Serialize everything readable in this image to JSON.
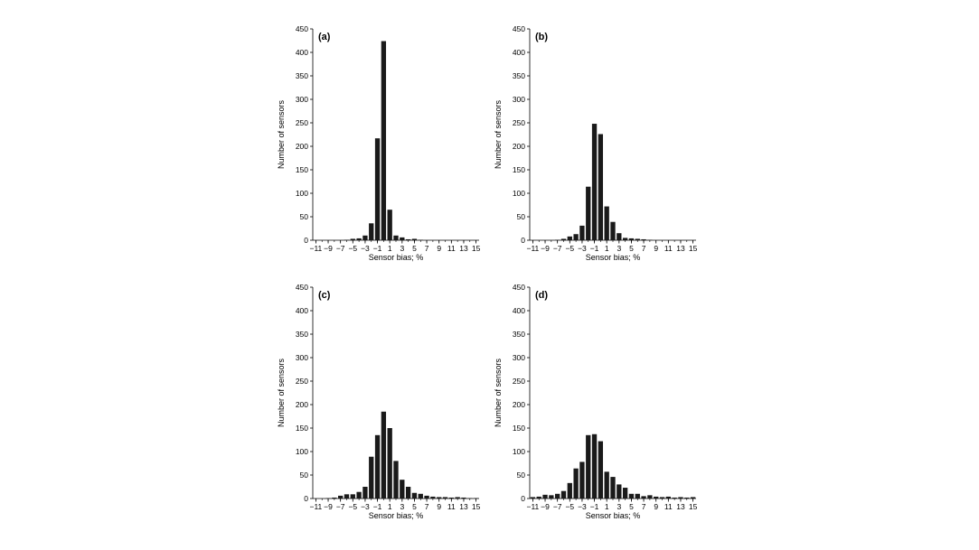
{
  "chart_data": [
    {
      "type": "bar",
      "panel_label": "(a)",
      "xlabel": "Sensor bias; %",
      "ylabel": "Number of sensors",
      "ylim": [
        0,
        450
      ],
      "yticks": [
        0,
        50,
        100,
        150,
        200,
        250,
        300,
        350,
        400,
        450
      ],
      "xlim": [
        -11,
        15
      ],
      "xticks": [
        -11,
        -9,
        -7,
        -5,
        -3,
        -1,
        1,
        3,
        5,
        7,
        9,
        11,
        13,
        15
      ],
      "xtick_labels": [
        "−11",
        "−9",
        "−7",
        "−5",
        "−3",
        "−1",
        "1",
        "3",
        "5",
        "7",
        "9",
        "11",
        "13",
        "15"
      ],
      "x": [
        -11,
        -10,
        -9,
        -8,
        -7,
        -6,
        -5,
        -4,
        -3,
        -2,
        -1,
        0,
        1,
        2,
        3,
        4,
        5,
        6,
        7,
        8,
        9,
        10,
        11,
        12,
        13,
        14,
        15
      ],
      "values": [
        0,
        0,
        0,
        0,
        0,
        1,
        3,
        4,
        10,
        36,
        217,
        424,
        65,
        10,
        6,
        2,
        3,
        1,
        0,
        0,
        0,
        0,
        0,
        0,
        0,
        0,
        0
      ]
    },
    {
      "type": "bar",
      "panel_label": "(b)",
      "xlabel": "Sensor bias; %",
      "ylabel": "Number of sensors",
      "ylim": [
        0,
        450
      ],
      "yticks": [
        0,
        50,
        100,
        150,
        200,
        250,
        300,
        350,
        400,
        450
      ],
      "xlim": [
        -11,
        15
      ],
      "xticks": [
        -11,
        -9,
        -7,
        -5,
        -3,
        -1,
        1,
        3,
        5,
        7,
        9,
        11,
        13,
        15
      ],
      "xtick_labels": [
        "−11",
        "−9",
        "−7",
        "−5",
        "−3",
        "−1",
        "1",
        "3",
        "5",
        "7",
        "9",
        "11",
        "13",
        "15"
      ],
      "x": [
        -11,
        -10,
        -9,
        -8,
        -7,
        -6,
        -5,
        -4,
        -3,
        -2,
        -1,
        0,
        1,
        2,
        3,
        4,
        5,
        6,
        7,
        8,
        9,
        10,
        11,
        12,
        13,
        14,
        15
      ],
      "values": [
        0,
        0,
        0,
        0,
        1,
        3,
        8,
        13,
        31,
        114,
        248,
        226,
        72,
        39,
        15,
        5,
        4,
        3,
        2,
        1,
        0,
        0,
        0,
        0,
        0,
        0,
        0
      ]
    },
    {
      "type": "bar",
      "panel_label": "(c)",
      "xlabel": "Sensor bias; %",
      "ylabel": "Number of sensors",
      "ylim": [
        0,
        450
      ],
      "yticks": [
        0,
        50,
        100,
        150,
        200,
        250,
        300,
        350,
        400,
        450
      ],
      "xlim": [
        -11,
        15
      ],
      "xticks": [
        -11,
        -9,
        -7,
        -5,
        -3,
        -1,
        1,
        3,
        5,
        7,
        9,
        11,
        13,
        15
      ],
      "xtick_labels": [
        "−11",
        "−9",
        "−7",
        "−5",
        "−3",
        "−1",
        "1",
        "3",
        "5",
        "7",
        "9",
        "11",
        "13",
        "15"
      ],
      "x": [
        -11,
        -10,
        -9,
        -8,
        -7,
        -6,
        -5,
        -4,
        -3,
        -2,
        -1,
        0,
        1,
        2,
        3,
        4,
        5,
        6,
        7,
        8,
        9,
        10,
        11,
        12,
        13,
        14,
        15
      ],
      "values": [
        0,
        0,
        1,
        2,
        6,
        9,
        9,
        14,
        25,
        89,
        135,
        185,
        150,
        80,
        40,
        25,
        12,
        10,
        6,
        4,
        3,
        3,
        2,
        3,
        2,
        1,
        1
      ]
    },
    {
      "type": "bar",
      "panel_label": "(d)",
      "xlabel": "Sensor bias; %",
      "ylabel": "Number of sensors",
      "ylim": [
        0,
        450
      ],
      "yticks": [
        0,
        50,
        100,
        150,
        200,
        250,
        300,
        350,
        400,
        450
      ],
      "xlim": [
        -11,
        15
      ],
      "xticks": [
        -11,
        -9,
        -7,
        -5,
        -3,
        -1,
        1,
        3,
        5,
        7,
        9,
        11,
        13,
        15
      ],
      "xtick_labels": [
        "−11",
        "−9",
        "−7",
        "−5",
        "−3",
        "−1",
        "1",
        "3",
        "5",
        "7",
        "9",
        "11",
        "13",
        "15"
      ],
      "x": [
        -11,
        -10,
        -9,
        -8,
        -7,
        -6,
        -5,
        -4,
        -3,
        -2,
        -1,
        0,
        1,
        2,
        3,
        4,
        5,
        6,
        7,
        8,
        9,
        10,
        11,
        12,
        13,
        14,
        15
      ],
      "values": [
        3,
        4,
        8,
        7,
        10,
        16,
        33,
        64,
        78,
        135,
        137,
        122,
        57,
        46,
        30,
        23,
        10,
        10,
        5,
        7,
        4,
        3,
        4,
        2,
        3,
        2,
        3
      ]
    }
  ]
}
